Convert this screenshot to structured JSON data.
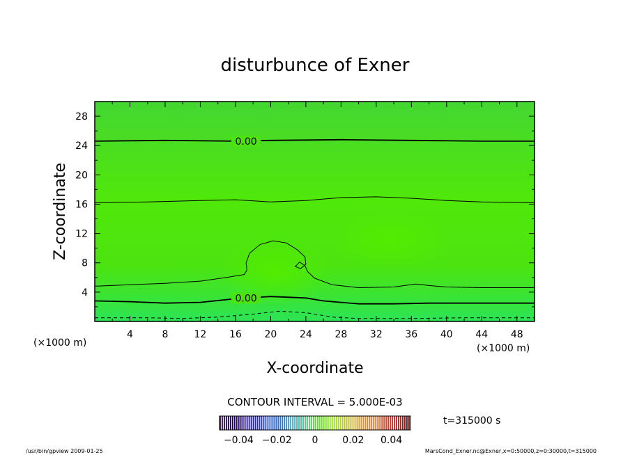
{
  "chart_data": {
    "type": "contour",
    "title": "disturbunce of Exner",
    "xlabel": "X-coordinate",
    "ylabel": "Z-coordinate",
    "x_unit": "(×1000 m)",
    "y_unit": "(×1000 m)",
    "xlim": [
      0,
      50
    ],
    "ylim": [
      0,
      30
    ],
    "x_ticks": [
      4,
      8,
      12,
      16,
      20,
      24,
      28,
      32,
      36,
      40,
      44,
      48
    ],
    "y_ticks": [
      4,
      8,
      12,
      16,
      20,
      24,
      28
    ],
    "contour_interval_text": "CONTOUR INTERVAL = 5.000E-03",
    "contour_labels": [
      {
        "x": 17.2,
        "z": 24.6,
        "text": "0.00"
      },
      {
        "x": 17.2,
        "z": 3.2,
        "text": "0.00"
      }
    ],
    "contours": [
      {
        "name": "upper-zero",
        "style": "bold",
        "points": [
          [
            0,
            24.6
          ],
          [
            8,
            24.7
          ],
          [
            16,
            24.6
          ],
          [
            20,
            24.7
          ],
          [
            28,
            24.8
          ],
          [
            36,
            24.7
          ],
          [
            44,
            24.6
          ],
          [
            50,
            24.6
          ]
        ]
      },
      {
        "name": "mid-upper",
        "style": "thin",
        "points": [
          [
            0,
            16.2
          ],
          [
            6,
            16.3
          ],
          [
            12,
            16.5
          ],
          [
            16,
            16.6
          ],
          [
            20,
            16.3
          ],
          [
            24,
            16.5
          ],
          [
            28,
            16.9
          ],
          [
            32,
            17.0
          ],
          [
            36,
            16.8
          ],
          [
            40,
            16.5
          ],
          [
            44,
            16.3
          ],
          [
            50,
            16.2
          ]
        ]
      },
      {
        "name": "bubble",
        "style": "thin",
        "points": [
          [
            0,
            4.8
          ],
          [
            4,
            5.0
          ],
          [
            8,
            5.2
          ],
          [
            12,
            5.5
          ],
          [
            15,
            6.0
          ],
          [
            17,
            6.4
          ],
          [
            17.3,
            7.0
          ],
          [
            17.2,
            8.0
          ],
          [
            17.6,
            9.3
          ],
          [
            18.8,
            10.5
          ],
          [
            20.3,
            11.0
          ],
          [
            21.8,
            10.7
          ],
          [
            23.0,
            9.8
          ],
          [
            23.9,
            8.8
          ],
          [
            24.0,
            7.8
          ],
          [
            23.4,
            7.2
          ],
          [
            22.8,
            7.5
          ],
          [
            23.3,
            8.1
          ],
          [
            23.9,
            7.6
          ],
          [
            24.2,
            6.8
          ],
          [
            25,
            5.9
          ],
          [
            27,
            5.0
          ],
          [
            30,
            4.6
          ],
          [
            34,
            4.7
          ],
          [
            36.5,
            5.1
          ],
          [
            38,
            4.9
          ],
          [
            40,
            4.7
          ],
          [
            44,
            4.6
          ],
          [
            50,
            4.6
          ]
        ]
      },
      {
        "name": "lower-zero",
        "style": "bold",
        "points": [
          [
            0,
            2.8
          ],
          [
            4,
            2.7
          ],
          [
            8,
            2.5
          ],
          [
            12,
            2.6
          ],
          [
            16,
            3.1
          ],
          [
            20,
            3.4
          ],
          [
            24,
            3.2
          ],
          [
            26,
            2.8
          ],
          [
            30,
            2.4
          ],
          [
            34,
            2.4
          ],
          [
            38,
            2.5
          ],
          [
            42,
            2.5
          ],
          [
            46,
            2.5
          ],
          [
            50,
            2.5
          ]
        ]
      },
      {
        "name": "negative",
        "style": "dashed",
        "points": [
          [
            0,
            0.5
          ],
          [
            6,
            0.5
          ],
          [
            10,
            0.4
          ],
          [
            14,
            0.6
          ],
          [
            18,
            1.0
          ],
          [
            21,
            1.4
          ],
          [
            24,
            1.2
          ],
          [
            27,
            0.6
          ],
          [
            30,
            0.4
          ],
          [
            36,
            0.4
          ],
          [
            42,
            0.5
          ],
          [
            50,
            0.5
          ]
        ]
      }
    ],
    "colorbar": {
      "labels": [
        "−0.04",
        "−0.02",
        "0",
        "0.02",
        "0.04"
      ],
      "label_values": [
        -0.04,
        -0.02,
        0,
        0.02,
        0.04
      ],
      "range": [
        -0.05,
        0.05
      ]
    },
    "time_text": "t=315000 s"
  },
  "footer": {
    "left": "/usr/bin/gpview   2009-01-25",
    "right": "MarsCond_Exner.nc@Exner,x=0:50000,z=0:30000,t=315000"
  }
}
